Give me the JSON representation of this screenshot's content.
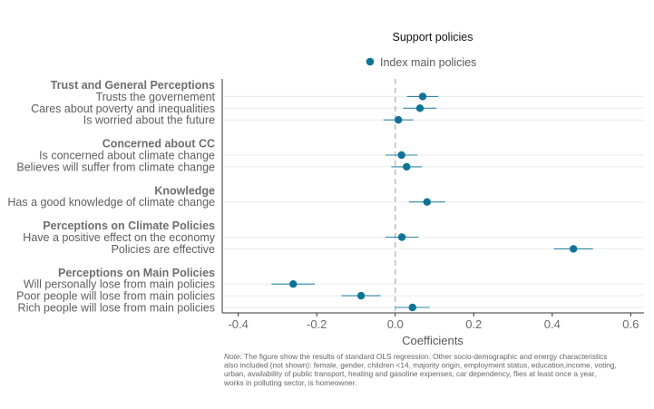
{
  "chart_data": {
    "type": "scatter",
    "subtype": "coefficient-plot-with-ci",
    "legend": {
      "title": "Support policies",
      "placement": "top-center",
      "entries": [
        {
          "label": "Index main policies",
          "color": "#0e7397"
        }
      ]
    },
    "xlabel": "Coefficients",
    "xlim": [
      -0.42,
      0.62
    ],
    "xticks": [
      "-0.4",
      "-0.2",
      "0.0",
      "0.2",
      "0.4",
      "0.6"
    ],
    "reference_line": 0,
    "groups": [
      {
        "label": "Trust and General Perceptions",
        "items": [
          {
            "label": "Trusts the governement",
            "value": 0.07,
            "lo": 0.03,
            "hi": 0.11
          },
          {
            "label": "Cares about poverty and inequalities",
            "value": 0.063,
            "lo": 0.02,
            "hi": 0.105
          },
          {
            "label": "Is worried about the future",
            "value": 0.008,
            "lo": -0.03,
            "hi": 0.046
          }
        ]
      },
      {
        "label": "Concerned about CC",
        "items": [
          {
            "label": "Is concerned about climate change",
            "value": 0.016,
            "lo": -0.025,
            "hi": 0.057
          },
          {
            "label": "Believes will suffer from climate change",
            "value": 0.029,
            "lo": -0.01,
            "hi": 0.068
          }
        ]
      },
      {
        "label": "Knowledge",
        "items": [
          {
            "label": "Has a good knowledge of climate change",
            "value": 0.081,
            "lo": 0.035,
            "hi": 0.127
          }
        ]
      },
      {
        "label": "Perceptions on Climate Policies",
        "items": [
          {
            "label": "Have a positive effect on the economy",
            "value": 0.017,
            "lo": -0.025,
            "hi": 0.059
          },
          {
            "label": "Policies are effective",
            "value": 0.454,
            "lo": 0.404,
            "hi": 0.504
          }
        ]
      },
      {
        "label": "Perceptions on Main Policies",
        "items": [
          {
            "label": "Will personally lose from main policies",
            "value": -0.26,
            "lo": -0.315,
            "hi": -0.205
          },
          {
            "label": "Poor people will lose from main policies",
            "value": -0.087,
            "lo": -0.137,
            "hi": -0.037
          },
          {
            "label": "Rich people will lose from main policies",
            "value": 0.044,
            "lo": 0.0,
            "hi": 0.088
          }
        ]
      }
    ],
    "note": {
      "lead": "Note:",
      "lines": [
        "The figure show the results of standard OLS regression. Other socio-demographic and energy characteristics",
        "also included (not shown): female, gender, children <14, majority origin, employment status, education,income, voting,",
        "urban, availability of public transport, heating and gasoline expenses, car dependency, flies at least once a year,",
        "works in polluting sector, is homeowner."
      ]
    },
    "colors": {
      "point": "#0e7397",
      "ci": "#2f86a7",
      "zero_line": "#b3b3b3",
      "axis": "#333333",
      "grid": "#ebebeb"
    }
  }
}
